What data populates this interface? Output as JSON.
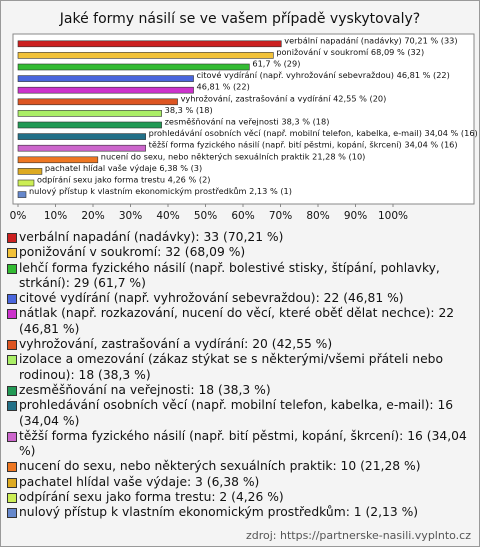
{
  "chart_data": {
    "type": "bar",
    "orientation": "horizontal",
    "title": "Jaké formy násilí se ve vašem případě vyskytovaly?",
    "values": [
      70.21,
      68.09,
      61.7,
      46.81,
      46.81,
      42.55,
      38.3,
      38.3,
      34.04,
      34.04,
      21.28,
      6.38,
      4.26,
      2.13
    ],
    "value_labels": [
      "verbální napadání (nadávky) 70,21 % (33)",
      "ponižování v soukromí 68,09 % (32)",
      "61,7 % (29)",
      "citové vydírání (např. vyhrožování sebevraždou) 46,81 % (22)",
      "46,81 % (22)",
      "vyhrožování, zastrašování a vydírání 42,55 % (20)",
      "38,3 % (18)",
      "zesměšňování na veřejnosti 38,3 % (18)",
      "prohledávání osobních věcí (např. mobilní telefon, kabelka, e-mail) 34,04 % (16)",
      "těžší forma fyzického násilí (např. bití pěstmi, kopání, škrcení) 34,04 % (16)",
      "nucení do sexu, nebo některých sexuálních praktik 21,28 % (10)",
      "pachatel hlídal vaše výdaje 6,38 % (3)",
      "odpírání sexu jako forma trestu 4,26 % (2)",
      "nulový přístup k vlastním ekonomickým prostředkům 2,13 % (1)"
    ],
    "colors": [
      "#cc2020",
      "#f2c23a",
      "#33bb33",
      "#4a66dd",
      "#cc33cc",
      "#dd5522",
      "#aaee66",
      "#229955",
      "#227088",
      "#cc66cc",
      "#ee7722",
      "#ddaa22",
      "#ccee55",
      "#6688cc"
    ],
    "legend": [
      "verbální napadání (nadávky): 33 (70,21 %)",
      "ponižování v soukromí: 32 (68,09 %)",
      "lehčí forma fyzického násilí (např. bolestivé stisky, štípání, pohlavky, strkání): 29 (61,7 %)",
      "citové vydírání (např. vyhrožování sebevraždou): 22 (46,81 %)",
      "nátlak (např. rozkazování, nucení do věcí, které oběť dělat nechce): 22 (46,81 %)",
      "vyhrožování, zastrašování a vydírání: 20 (42,55 %)",
      "izolace a omezování (zákaz stýkat se s některými/všemi přáteli nebo rodinou): 18 (38,3 %)",
      "zesměšňování na veřejnosti: 18 (38,3 %)",
      "prohledávání osobních věcí (např. mobilní telefon, kabelka, e-mail): 16 (34,04 %)",
      "těžší forma fyzického násilí (např. bití pěstmi, kopání, škrcení): 16 (34,04 %)",
      "nucení do sexu, nebo některých sexuálních praktik: 10 (21,28 %)",
      "pachatel hlídal vaše výdaje: 3 (6,38 %)",
      "odpírání sexu jako forma trestu: 2 (4,26 %)",
      "nulový přístup k vlastním ekonomickým prostředkům: 1 (2,13 %)"
    ],
    "xlim": [
      0,
      120
    ],
    "xticks": [
      {
        "value": 0,
        "label": "0%"
      },
      {
        "value": 10,
        "label": "10%"
      },
      {
        "value": 20,
        "label": "20%"
      },
      {
        "value": 30,
        "label": "30%"
      },
      {
        "value": 40,
        "label": "40%"
      },
      {
        "value": 50,
        "label": "50%"
      },
      {
        "value": 60,
        "label": "60%"
      },
      {
        "value": 70,
        "label": "70%"
      },
      {
        "value": 80,
        "label": "80%"
      },
      {
        "value": 90,
        "label": "90%"
      },
      {
        "value": 100,
        "label": "100%"
      }
    ],
    "grid": false,
    "source": "zdroj: https://partnerske-nasili.vyplnto.cz"
  }
}
